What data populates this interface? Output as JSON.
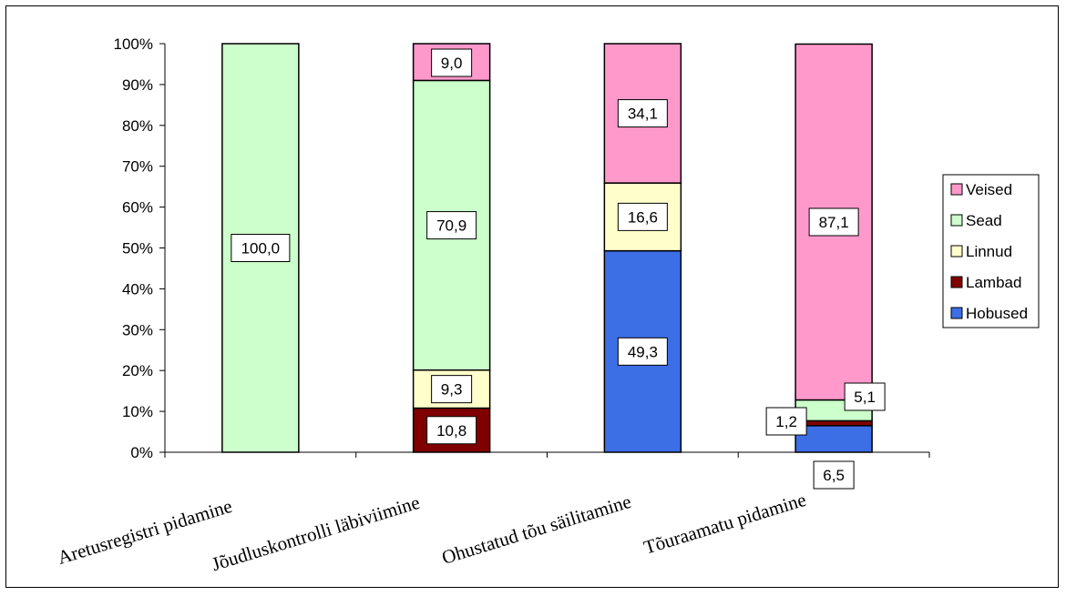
{
  "chart_data": {
    "type": "bar",
    "stacked": true,
    "percent": true,
    "categories": [
      "Aretusregistri pidamine",
      "Jõudluskontrolli läbiviimine",
      "Ohustatud tõu säilitamine",
      "Tõuraamatu pidamine"
    ],
    "series": [
      {
        "name": "Hobused",
        "color": "#3c6ee6",
        "values": [
          0,
          0,
          49.3,
          6.5
        ],
        "labels": [
          "",
          "",
          "49,3",
          "6,5"
        ]
      },
      {
        "name": "Lambad",
        "color": "#800000",
        "values": [
          0,
          10.8,
          0,
          1.2
        ],
        "labels": [
          "",
          "10,8",
          "",
          "1,2"
        ]
      },
      {
        "name": "Linnud",
        "color": "#ffffcc",
        "values": [
          0,
          9.3,
          16.6,
          0
        ],
        "labels": [
          "",
          "9,3",
          "16,6",
          ""
        ]
      },
      {
        "name": "Sead",
        "color": "#ccffcc",
        "values": [
          100.0,
          70.9,
          0,
          5.1
        ],
        "labels": [
          "100,0",
          "70,9",
          "",
          "5,1"
        ]
      },
      {
        "name": "Veised",
        "color": "#ff99cc",
        "values": [
          0,
          9.0,
          34.1,
          87.1
        ],
        "labels": [
          "",
          "9,0",
          "34,1",
          "87,1"
        ]
      }
    ],
    "yticks": [
      "0%",
      "10%",
      "20%",
      "30%",
      "40%",
      "50%",
      "60%",
      "70%",
      "80%",
      "90%",
      "100%"
    ],
    "ylim": [
      0,
      100
    ],
    "grid": false,
    "legend_position": "right",
    "legend_order": [
      "Veised",
      "Sead",
      "Linnud",
      "Lambad",
      "Hobused"
    ],
    "title": "",
    "xlabel": "",
    "ylabel": ""
  }
}
